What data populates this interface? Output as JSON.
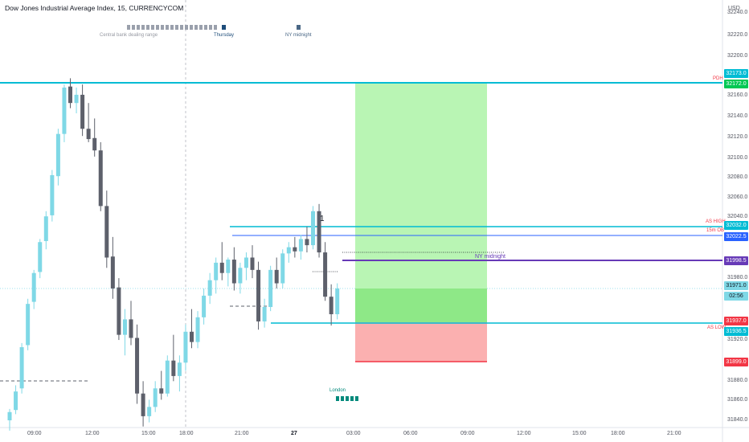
{
  "title": "Dow Jones Industrial Average Index, 15, CURRENCYCOM",
  "currency": "USD",
  "price_labels": [
    "32240.0",
    "32220.0",
    "32200.0",
    "32180.0",
    "32160.0",
    "32140.0",
    "32120.0",
    "32100.0",
    "32080.0",
    "32060.0",
    "32040.0",
    "32000.0",
    "31980.0",
    "31960.0",
    "31920.0",
    "31880.0",
    "31860.0",
    "31840.0"
  ],
  "time_labels": [
    "09:00",
    "12:00",
    "15:00",
    "18:00",
    "21:00",
    "27",
    "03:00",
    "06:00",
    "09:00",
    "12:00",
    "15:00",
    "18:00",
    "21:00"
  ],
  "sessions": {
    "range_label": "Central bank dealing range",
    "thursday": "Thursday",
    "ny_midnight": "NY midnight",
    "london": "London"
  },
  "levels": {
    "pdh_label": "PDH",
    "as_high_label": "AS HIGH",
    "ob_label": "15m OB",
    "as_low_label": "AS LOW",
    "ny_midnight_line": "NY midnight",
    "marker_1": "1"
  },
  "price_tags": [
    {
      "text": "32173.0",
      "color": "#00bcd4"
    },
    {
      "text": "32172.0",
      "color": "#00c853"
    },
    {
      "text": "32032.0",
      "color": "#00bcd4"
    },
    {
      "text": "32022.5",
      "color": "#2962ff"
    },
    {
      "text": "31998.5",
      "color": "#673ab7"
    },
    {
      "text": "31971.0",
      "color": "#7fd8e6"
    },
    {
      "text": "02:56",
      "color": "#7fd8e6"
    },
    {
      "text": "31937.0",
      "color": "#f23645"
    },
    {
      "text": "31936.5",
      "color": "#00bcd4"
    },
    {
      "text": "31899.0",
      "color": "#f23645"
    }
  ],
  "colors": {
    "up": "#7fd8e6",
    "down": "#5d606b",
    "profit": "#b9f5b4",
    "loss": "#fbb0b0",
    "cyan": "#00bcd4",
    "purple": "#673ab7"
  },
  "chart_data": {
    "type": "candlestick",
    "price_range": [
      31835,
      32250
    ],
    "candles": [
      {
        "o": 31842,
        "h": 31853,
        "l": 31832,
        "c": 31850
      },
      {
        "o": 31852,
        "h": 31876,
        "l": 31848,
        "c": 31870
      },
      {
        "o": 31873,
        "h": 31917,
        "l": 31868,
        "c": 31913
      },
      {
        "o": 31915,
        "h": 31960,
        "l": 31910,
        "c": 31955
      },
      {
        "o": 31957,
        "h": 31988,
        "l": 31950,
        "c": 31985
      },
      {
        "o": 31986,
        "h": 32018,
        "l": 31980,
        "c": 32015
      },
      {
        "o": 32016,
        "h": 32045,
        "l": 32008,
        "c": 32040
      },
      {
        "o": 32041,
        "h": 32085,
        "l": 32035,
        "c": 32080
      },
      {
        "o": 32079,
        "h": 32125,
        "l": 32070,
        "c": 32120
      },
      {
        "o": 32120,
        "h": 32168,
        "l": 32112,
        "c": 32165
      },
      {
        "o": 32166,
        "h": 32174,
        "l": 32145,
        "c": 32150
      },
      {
        "o": 32150,
        "h": 32165,
        "l": 32140,
        "c": 32158
      },
      {
        "o": 32158,
        "h": 32168,
        "l": 32118,
        "c": 32125
      },
      {
        "o": 32125,
        "h": 32150,
        "l": 32112,
        "c": 32115
      },
      {
        "o": 32116,
        "h": 32135,
        "l": 32098,
        "c": 32104
      },
      {
        "o": 32104,
        "h": 32112,
        "l": 32045,
        "c": 32050
      },
      {
        "o": 32050,
        "h": 32065,
        "l": 31990,
        "c": 32000
      },
      {
        "o": 32001,
        "h": 32020,
        "l": 31960,
        "c": 31970
      },
      {
        "o": 31971,
        "h": 31980,
        "l": 31920,
        "c": 31925
      },
      {
        "o": 31925,
        "h": 31950,
        "l": 31905,
        "c": 31940
      },
      {
        "o": 31940,
        "h": 31958,
        "l": 31915,
        "c": 31922
      },
      {
        "o": 31922,
        "h": 31935,
        "l": 31858,
        "c": 31868
      },
      {
        "o": 31868,
        "h": 31880,
        "l": 31836,
        "c": 31846
      },
      {
        "o": 31846,
        "h": 31862,
        "l": 31840,
        "c": 31855
      },
      {
        "o": 31855,
        "h": 31880,
        "l": 31850,
        "c": 31873
      },
      {
        "o": 31873,
        "h": 31890,
        "l": 31862,
        "c": 31868
      },
      {
        "o": 31868,
        "h": 31905,
        "l": 31865,
        "c": 31900
      },
      {
        "o": 31900,
        "h": 31925,
        "l": 31880,
        "c": 31885
      },
      {
        "o": 31885,
        "h": 31905,
        "l": 31870,
        "c": 31898
      },
      {
        "o": 31898,
        "h": 31935,
        "l": 31890,
        "c": 31928
      },
      {
        "o": 31928,
        "h": 31950,
        "l": 31912,
        "c": 31918
      },
      {
        "o": 31918,
        "h": 31948,
        "l": 31912,
        "c": 31942
      },
      {
        "o": 31942,
        "h": 31970,
        "l": 31935,
        "c": 31963
      },
      {
        "o": 31963,
        "h": 31985,
        "l": 31955,
        "c": 31978
      },
      {
        "o": 31978,
        "h": 32000,
        "l": 31965,
        "c": 31995
      },
      {
        "o": 31995,
        "h": 32015,
        "l": 31978,
        "c": 31985
      },
      {
        "o": 31985,
        "h": 32000,
        "l": 31972,
        "c": 31998
      },
      {
        "o": 31998,
        "h": 32010,
        "l": 31968,
        "c": 31975
      },
      {
        "o": 31975,
        "h": 31995,
        "l": 31965,
        "c": 31990
      },
      {
        "o": 31990,
        "h": 32005,
        "l": 31978,
        "c": 32000
      },
      {
        "o": 32000,
        "h": 32012,
        "l": 31980,
        "c": 31988
      },
      {
        "o": 31988,
        "h": 31996,
        "l": 31930,
        "c": 31938
      },
      {
        "o": 31938,
        "h": 31960,
        "l": 31932,
        "c": 31952
      },
      {
        "o": 31952,
        "h": 31992,
        "l": 31948,
        "c": 31988
      },
      {
        "o": 31988,
        "h": 32000,
        "l": 31970,
        "c": 31975
      },
      {
        "o": 31975,
        "h": 32008,
        "l": 31970,
        "c": 32004
      },
      {
        "o": 32004,
        "h": 32015,
        "l": 31995,
        "c": 32010
      },
      {
        "o": 32010,
        "h": 32020,
        "l": 32000,
        "c": 32006
      },
      {
        "o": 32006,
        "h": 32022,
        "l": 31998,
        "c": 32018
      },
      {
        "o": 32018,
        "h": 32030,
        "l": 32005,
        "c": 32012
      },
      {
        "o": 32012,
        "h": 32050,
        "l": 32008,
        "c": 32045
      },
      {
        "o": 32045,
        "h": 32052,
        "l": 32000,
        "c": 32005
      },
      {
        "o": 32005,
        "h": 32015,
        "l": 31958,
        "c": 31962
      },
      {
        "o": 31962,
        "h": 31974,
        "l": 31934,
        "c": 31945
      },
      {
        "o": 31945,
        "h": 31975,
        "l": 31940,
        "c": 31970
      }
    ]
  }
}
